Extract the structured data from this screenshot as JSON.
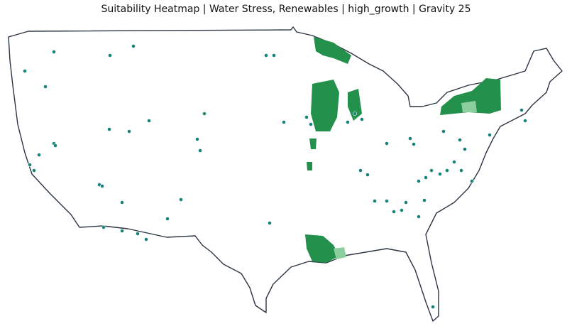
{
  "header": {
    "title": "Suitability Heatmap | Water Stress, Renewables | high_growth | Gravity 25"
  }
}
